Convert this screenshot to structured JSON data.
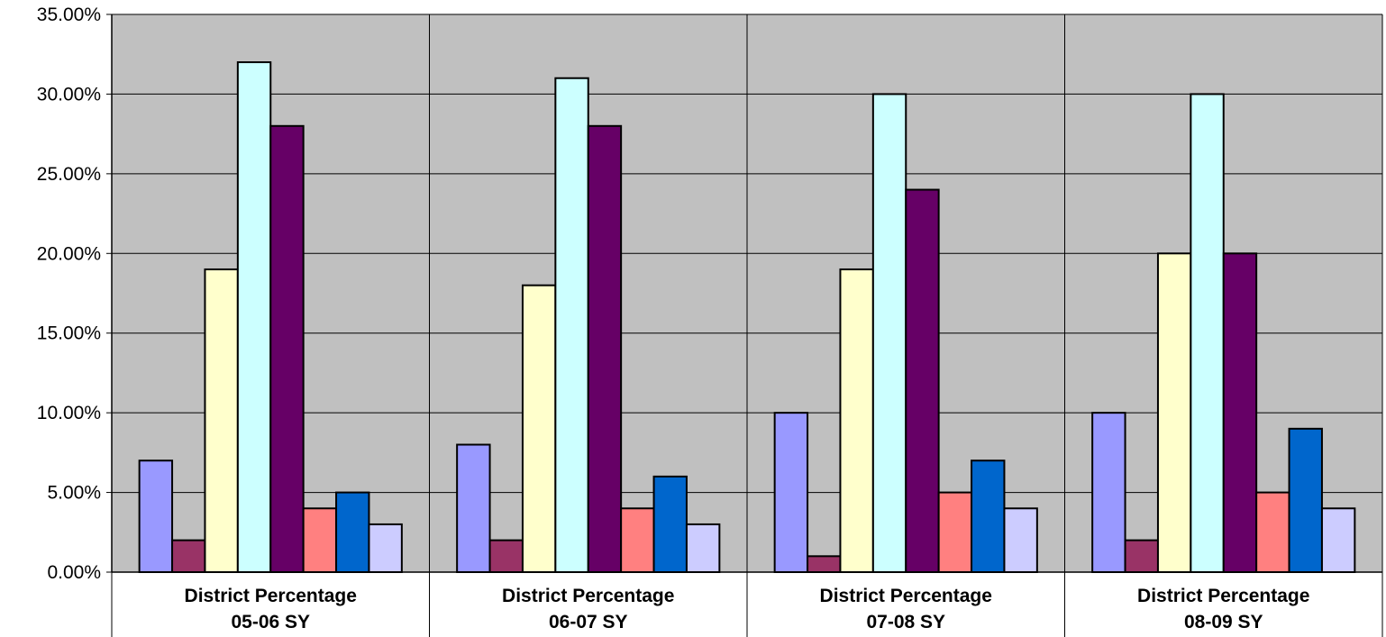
{
  "chart_data": {
    "type": "bar",
    "title": "",
    "xlabel": "",
    "ylabel": "",
    "ylim": [
      0,
      35
    ],
    "y_ticks": [
      {
        "value": 0,
        "label": "0.00%"
      },
      {
        "value": 5,
        "label": "5.00%"
      },
      {
        "value": 10,
        "label": "10.00%"
      },
      {
        "value": 15,
        "label": "15.00%"
      },
      {
        "value": 20,
        "label": "20.00%"
      },
      {
        "value": 25,
        "label": "25.00%"
      },
      {
        "value": 30,
        "label": "30.00%"
      },
      {
        "value": 35,
        "label": "35.00%"
      }
    ],
    "categories": [
      [
        "District Percentage",
        "05-06 SY"
      ],
      [
        "District Percentage",
        "06-07 SY"
      ],
      [
        "District Percentage",
        "07-08 SY"
      ],
      [
        "District Percentage",
        "08-09 SY"
      ]
    ],
    "series": [
      {
        "color": "#9999ff",
        "values": [
          7,
          8,
          10,
          10
        ]
      },
      {
        "color": "#993366",
        "values": [
          2,
          2,
          1,
          2
        ]
      },
      {
        "color": "#ffffcc",
        "values": [
          19,
          18,
          19,
          20
        ]
      },
      {
        "color": "#ccffff",
        "values": [
          32,
          31,
          30,
          30
        ]
      },
      {
        "color": "#660066",
        "values": [
          28,
          28,
          24,
          20
        ]
      },
      {
        "color": "#ff8080",
        "values": [
          4,
          4,
          5,
          5
        ]
      },
      {
        "color": "#0066cc",
        "values": [
          5,
          6,
          7,
          9
        ]
      },
      {
        "color": "#ccccff",
        "values": [
          3,
          3,
          4,
          4
        ]
      }
    ],
    "plot_background": "#c0c0c0",
    "grid": true,
    "legend": "none"
  }
}
